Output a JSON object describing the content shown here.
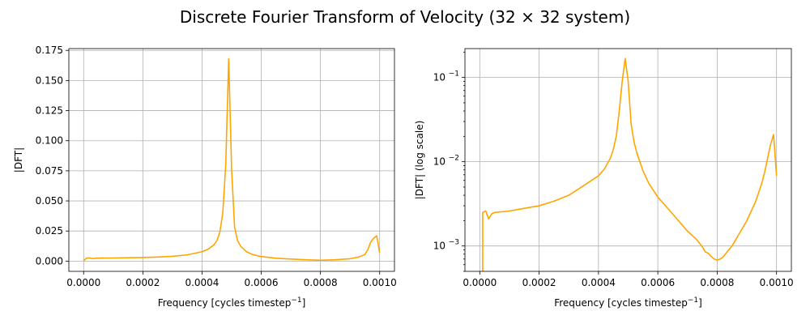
{
  "figure": {
    "title": "Discrete Fourier Transform of Velocity (32 × 32 system)"
  },
  "colors": {
    "line": "#ffa500",
    "grid": "#b0b0b0",
    "axes": "#000000"
  },
  "chart_data": [
    {
      "type": "line",
      "scale_y": "linear",
      "xlabel": "Frequency [cycles timestep",
      "xlabel_sup": "−1",
      "xlabel_end": "]",
      "ylabel": "|DFT|",
      "xlim": [
        -5e-05,
        0.00105
      ],
      "ylim": [
        -0.0085,
        0.1765
      ],
      "xticks": [
        0,
        0.0002,
        0.0004,
        0.0006,
        0.0008,
        0.001
      ],
      "xtick_labels": [
        "0.0000",
        "0.0002",
        "0.0004",
        "0.0006",
        "0.0008",
        "0.0010"
      ],
      "yticks": [
        0,
        0.025,
        0.05,
        0.075,
        0.1,
        0.125,
        0.15,
        0.175
      ],
      "ytick_labels": [
        "0.000",
        "0.025",
        "0.050",
        "0.075",
        "0.100",
        "0.125",
        "0.150",
        "0.175"
      ],
      "grid": true,
      "series": [
        {
          "x": [
            0.0,
            1e-05,
            2e-05,
            3e-05,
            4e-05,
            5e-05,
            0.0001,
            0.00015,
            0.0002,
            0.00025,
            0.0003,
            0.00035,
            0.0004,
            0.00042,
            0.00044,
            0.00045,
            0.00046,
            0.00047,
            0.00048,
            0.00049,
            0.0005,
            0.00051,
            0.00052,
            0.00053,
            0.00055,
            0.00057,
            0.0006,
            0.00065,
            0.0007,
            0.00075,
            0.0008,
            0.00085,
            0.0009,
            0.00093,
            0.00095,
            0.00096,
            0.00097,
            0.00098,
            0.00099,
            0.001
          ],
          "y": [
            0.0003,
            0.0025,
            0.0026,
            0.0021,
            0.0024,
            0.0025,
            0.0026,
            0.0028,
            0.003,
            0.0034,
            0.004,
            0.0052,
            0.0078,
            0.0098,
            0.0135,
            0.017,
            0.024,
            0.04,
            0.08,
            0.168,
            0.075,
            0.028,
            0.017,
            0.0125,
            0.0078,
            0.0055,
            0.0038,
            0.0024,
            0.0017,
            0.0011,
            0.0007,
            0.0011,
            0.002,
            0.0034,
            0.0055,
            0.0095,
            0.016,
            0.019,
            0.021,
            0.0068
          ]
        }
      ]
    },
    {
      "type": "line",
      "scale_y": "log",
      "xlabel": "Frequency [cycles timestep",
      "xlabel_sup": "−1",
      "xlabel_end": "]",
      "ylabel": "|DFT| (log scale)",
      "xlim": [
        -5e-05,
        0.00105
      ],
      "ylim": [
        0.0005,
        0.22
      ],
      "xticks": [
        0,
        0.0002,
        0.0004,
        0.0006,
        0.0008,
        0.001
      ],
      "xtick_labels": [
        "0.0000",
        "0.0002",
        "0.0004",
        "0.0006",
        "0.0008",
        "0.0010"
      ],
      "yticks": [
        0.001,
        0.01,
        0.1
      ],
      "ytick_base": "10",
      "ytick_exps": [
        "−3",
        "−2",
        "−1"
      ],
      "grid": true,
      "series": [
        {
          "x": [
            1e-05,
            1e-05,
            2e-05,
            3e-05,
            4e-05,
            5e-05,
            0.0001,
            0.00015,
            0.0002,
            0.00025,
            0.0003,
            0.00035,
            0.0004,
            0.00042,
            0.00044,
            0.00045,
            0.00046,
            0.00047,
            0.00048,
            0.00049,
            0.0005,
            0.00051,
            0.00052,
            0.00053,
            0.00055,
            0.00057,
            0.0006,
            0.00065,
            0.0007,
            0.00073,
            0.00075,
            0.00076,
            0.00077,
            0.00078,
            0.00079,
            0.0008,
            0.00081,
            0.00082,
            0.00083,
            0.00085,
            0.0009,
            0.00093,
            0.00095,
            0.00096,
            0.00097,
            0.00098,
            0.00099,
            0.001
          ],
          "y": [
            0.0004,
            0.0025,
            0.0026,
            0.0021,
            0.0024,
            0.0025,
            0.0026,
            0.0028,
            0.003,
            0.0034,
            0.004,
            0.0052,
            0.0068,
            0.0082,
            0.011,
            0.014,
            0.02,
            0.04,
            0.09,
            0.168,
            0.09,
            0.028,
            0.017,
            0.0125,
            0.0078,
            0.0055,
            0.0038,
            0.0024,
            0.0015,
            0.0012,
            0.00098,
            0.00085,
            0.00082,
            0.00075,
            0.0007,
            0.00068,
            0.0007,
            0.00074,
            0.00082,
            0.001,
            0.002,
            0.0034,
            0.0055,
            0.0075,
            0.011,
            0.016,
            0.021,
            0.0068
          ]
        }
      ]
    }
  ]
}
